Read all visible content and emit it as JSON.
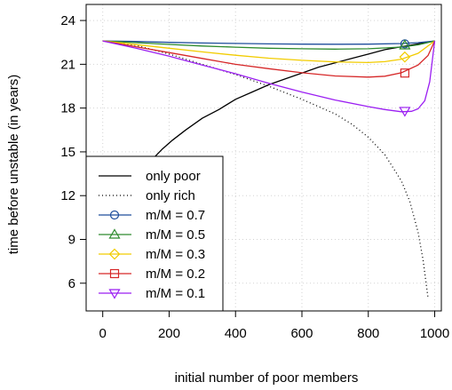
{
  "chart_data": {
    "type": "line",
    "title": "",
    "xlabel": "initial number of poor members",
    "ylabel": "time before unstable (in years)",
    "xlim": [
      -50,
      1020
    ],
    "ylim": [
      4.1,
      25.1
    ],
    "x_ticks": [
      0,
      200,
      400,
      600,
      800,
      1000
    ],
    "y_ticks": [
      6,
      9,
      12,
      15,
      18,
      21,
      24
    ],
    "grid": true,
    "legend_position": "bottom-left",
    "series": [
      {
        "name": "only poor",
        "color": "#000000",
        "line": "solid",
        "marker": "",
        "x": [
          150,
          180,
          210,
          250,
          300,
          350,
          400,
          450,
          500,
          550,
          600,
          650,
          700,
          750,
          800,
          850,
          900,
          950,
          1000
        ],
        "y": [
          14.5,
          15.2,
          15.8,
          16.5,
          17.3,
          17.9,
          18.6,
          19.1,
          19.6,
          20.0,
          20.4,
          20.8,
          21.1,
          21.4,
          21.7,
          22.0,
          22.2,
          22.4,
          22.6
        ]
      },
      {
        "name": "only rich",
        "color": "#000000",
        "line": "dotted",
        "marker": "",
        "x": [
          0,
          100,
          200,
          300,
          400,
          500,
          600,
          700,
          750,
          800,
          850,
          900,
          925,
          950,
          965,
          980
        ],
        "y": [
          22.6,
          22.3,
          21.7,
          21.0,
          20.3,
          19.5,
          18.6,
          17.6,
          16.9,
          16.0,
          14.8,
          13.0,
          11.6,
          9.5,
          7.6,
          5.0
        ]
      },
      {
        "name": "m/M = 0.7",
        "color": "#1f4e9c",
        "line": "solid",
        "marker": "circle",
        "marker_x": 910,
        "marker_y": 22.4,
        "x": [
          0,
          100,
          200,
          300,
          400,
          500,
          600,
          700,
          800,
          900,
          950,
          1000
        ],
        "y": [
          22.6,
          22.56,
          22.5,
          22.46,
          22.43,
          22.4,
          22.38,
          22.37,
          22.38,
          22.42,
          22.48,
          22.6
        ]
      },
      {
        "name": "m/M = 0.5",
        "color": "#2e8b2e",
        "line": "solid",
        "marker": "triangle-up",
        "marker_x": 910,
        "marker_y": 22.3,
        "x": [
          0,
          100,
          200,
          300,
          400,
          500,
          600,
          700,
          800,
          900,
          950,
          1000
        ],
        "y": [
          22.6,
          22.48,
          22.36,
          22.25,
          22.17,
          22.1,
          22.06,
          22.04,
          22.06,
          22.18,
          22.33,
          22.6
        ]
      },
      {
        "name": "m/M = 0.3",
        "color": "#f2cc00",
        "line": "solid",
        "marker": "diamond",
        "marker_x": 910,
        "marker_y": 21.5,
        "x": [
          0,
          100,
          200,
          300,
          400,
          500,
          600,
          700,
          800,
          850,
          900,
          950,
          1000
        ],
        "y": [
          22.6,
          22.35,
          22.1,
          21.85,
          21.62,
          21.42,
          21.27,
          21.16,
          21.12,
          21.18,
          21.35,
          21.75,
          22.6
        ]
      },
      {
        "name": "m/M = 0.2",
        "color": "#d62728",
        "line": "solid",
        "marker": "square",
        "marker_x": 910,
        "marker_y": 20.4,
        "x": [
          0,
          100,
          200,
          300,
          400,
          500,
          600,
          700,
          800,
          850,
          900,
          950,
          980,
          1000
        ],
        "y": [
          22.6,
          22.2,
          21.8,
          21.4,
          21.0,
          20.7,
          20.42,
          20.2,
          20.12,
          20.18,
          20.42,
          20.95,
          21.6,
          22.6
        ]
      },
      {
        "name": "m/M = 0.1",
        "color": "#9b1ff2",
        "line": "solid",
        "marker": "triangle-down",
        "marker_x": 910,
        "marker_y": 17.8,
        "x": [
          0,
          100,
          200,
          300,
          400,
          500,
          600,
          700,
          800,
          850,
          900,
          930,
          950,
          970,
          985,
          1000
        ],
        "y": [
          22.6,
          22.1,
          21.55,
          20.95,
          20.35,
          19.7,
          19.1,
          18.55,
          18.1,
          17.9,
          17.75,
          17.78,
          17.95,
          18.5,
          19.8,
          22.6
        ]
      }
    ]
  }
}
